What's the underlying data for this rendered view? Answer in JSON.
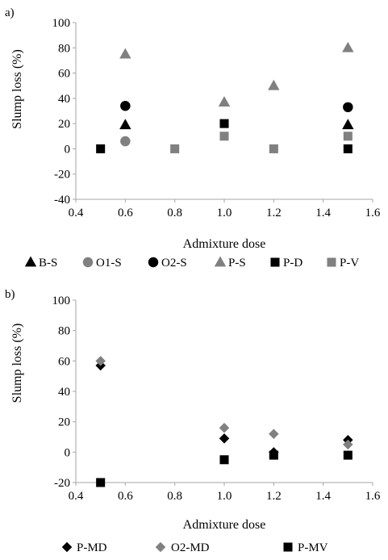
{
  "chart_data": [
    {
      "type": "scatter",
      "panel_label": "a)",
      "title": "",
      "xlabel": "Admixture dose",
      "ylabel": "Slump loss (%)",
      "xlim": [
        0.4,
        1.6
      ],
      "ylim": [
        -40,
        100
      ],
      "xticks": [
        0.4,
        0.6,
        0.8,
        1.0,
        1.2,
        1.4,
        1.6
      ],
      "xtick_labels": [
        "0.4",
        "0.6",
        "0.8",
        "1.0",
        "1.2",
        "1.4",
        "1.6"
      ],
      "yticks": [
        -40,
        -20,
        0,
        20,
        40,
        60,
        80,
        100
      ],
      "ytick_labels": [
        "-40",
        "-20",
        "0",
        "20",
        "40",
        "60",
        "80",
        "100"
      ],
      "grid": false,
      "legend_position": "bottom",
      "series": [
        {
          "name": "B-S",
          "marker": "triangle",
          "color": "#000000",
          "x": [
            0.6,
            1.5
          ],
          "y": [
            19,
            19
          ]
        },
        {
          "name": "O1-S",
          "marker": "circle",
          "color": "#808080",
          "x": [
            0.6
          ],
          "y": [
            6
          ]
        },
        {
          "name": "O2-S",
          "marker": "circle",
          "color": "#000000",
          "x": [
            0.6,
            1.5
          ],
          "y": [
            34,
            33
          ]
        },
        {
          "name": "P-S",
          "marker": "triangle",
          "color": "#808080",
          "x": [
            0.6,
            1.0,
            1.2,
            1.5
          ],
          "y": [
            75,
            37,
            50,
            80
          ]
        },
        {
          "name": "P-D",
          "marker": "square",
          "color": "#000000",
          "x": [
            0.5,
            1.0,
            1.5
          ],
          "y": [
            0,
            20,
            0
          ]
        },
        {
          "name": "P-V",
          "marker": "square",
          "color": "#808080",
          "x": [
            0.8,
            1.0,
            1.2,
            1.5
          ],
          "y": [
            0,
            10,
            0,
            10
          ]
        }
      ]
    },
    {
      "type": "scatter",
      "panel_label": "b)",
      "title": "",
      "xlabel": "Admixture dose",
      "ylabel": "Slump loss (%)",
      "xlim": [
        0.4,
        1.6
      ],
      "ylim": [
        -20,
        100
      ],
      "xticks": [
        0.4,
        0.6,
        0.8,
        1.0,
        1.2,
        1.4,
        1.6
      ],
      "xtick_labels": [
        "0.4",
        "0.6",
        "0.8",
        "1.0",
        "1.2",
        "1.4",
        "1.6"
      ],
      "yticks": [
        -20,
        0,
        20,
        40,
        60,
        80,
        100
      ],
      "ytick_labels": [
        "-20",
        "0",
        "20",
        "40",
        "60",
        "80",
        "100"
      ],
      "grid": false,
      "legend_position": "bottom",
      "series": [
        {
          "name": "P-MD",
          "marker": "diamond",
          "color": "#000000",
          "x": [
            0.5,
            1.0,
            1.2,
            1.5
          ],
          "y": [
            57,
            9,
            0,
            8
          ]
        },
        {
          "name": "O2-MD",
          "marker": "diamond",
          "color": "#808080",
          "x": [
            0.5,
            1.0,
            1.2,
            1.5
          ],
          "y": [
            60,
            16,
            12,
            5
          ]
        },
        {
          "name": "P-MV",
          "marker": "square",
          "color": "#000000",
          "x": [
            0.5,
            1.0,
            1.2,
            1.5
          ],
          "y": [
            -20,
            -5,
            -2,
            -2
          ]
        }
      ]
    }
  ]
}
